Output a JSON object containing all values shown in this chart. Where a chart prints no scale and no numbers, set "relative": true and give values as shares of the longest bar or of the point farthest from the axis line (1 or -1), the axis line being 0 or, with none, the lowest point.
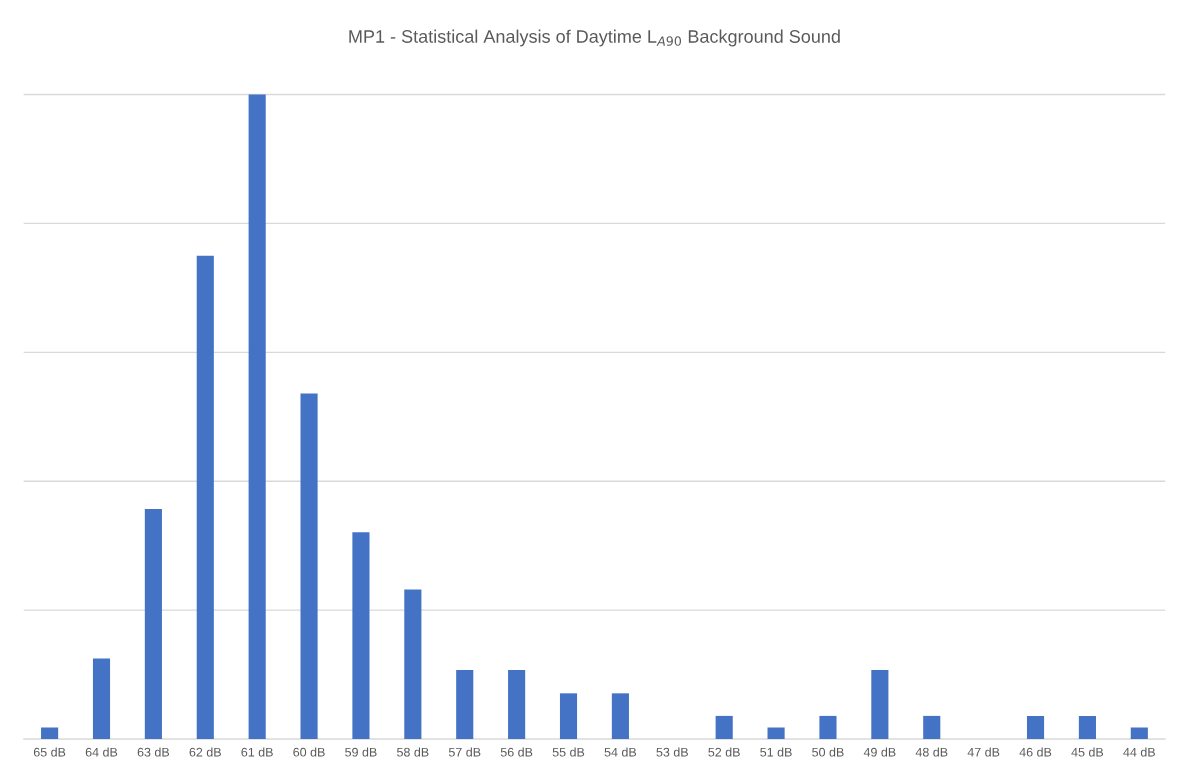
{
  "chart_data": {
    "type": "bar",
    "title": "MP1 - Statistical Analysis of Daytime L$_{A90}$ Background Sound",
    "categories": [
      "65 dB",
      "64 dB",
      "63 dB",
      "62 dB",
      "61 dB",
      "60 dB",
      "59 dB",
      "58 dB",
      "57 dB",
      "56 dB",
      "55 dB",
      "54 dB",
      "53 dB",
      "52 dB",
      "51 dB",
      "50 dB",
      "49 dB",
      "48 dB",
      "47 dB",
      "46 dB",
      "45 dB",
      "44 dB"
    ],
    "values": [
      0.018,
      0.125,
      0.357,
      0.75,
      1,
      0.536,
      0.321,
      0.232,
      0.107,
      0.107,
      0.071,
      0.071,
      0,
      0.036,
      0.018,
      0.036,
      0.107,
      0.036,
      0,
      0.036,
      0.036,
      0.018
    ],
    "color": "#4472c4",
    "relative": true,
    "grid": "y",
    "legend": false
  }
}
